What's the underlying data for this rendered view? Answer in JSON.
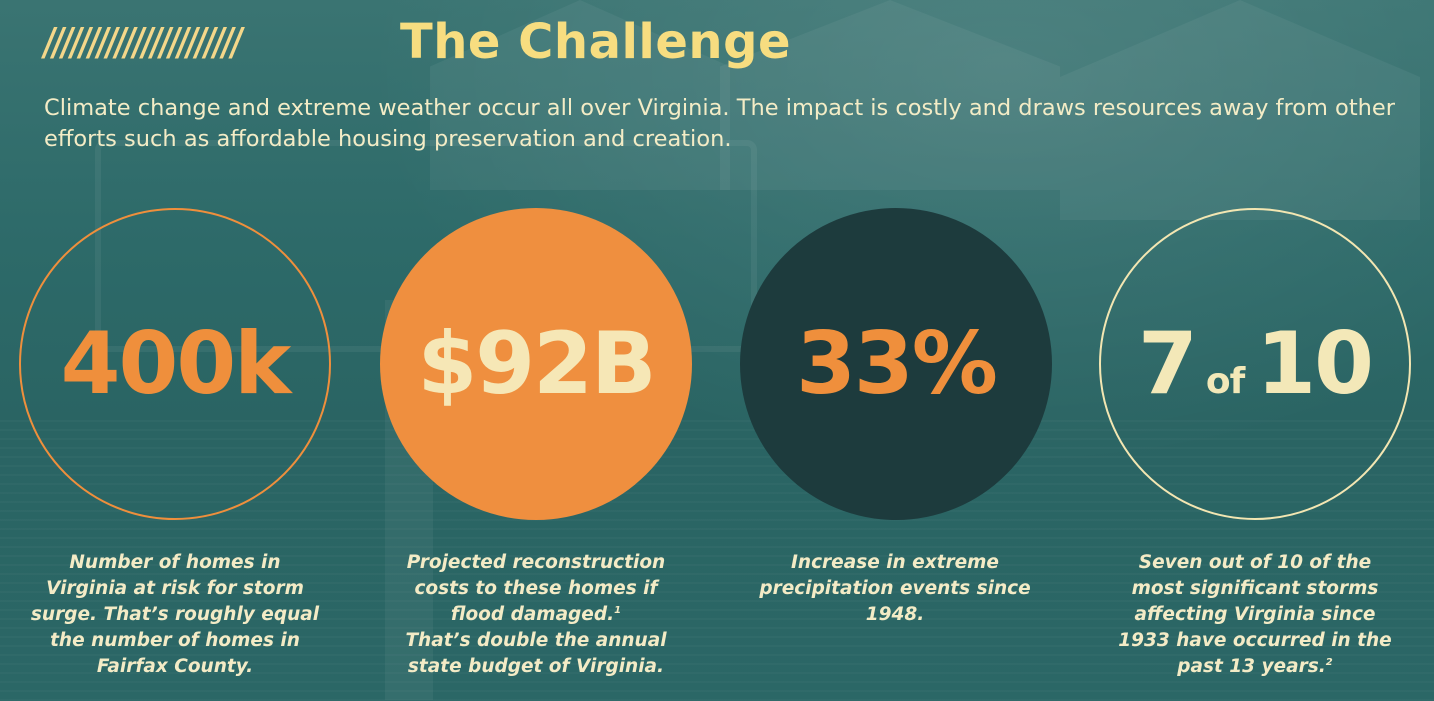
{
  "header": {
    "slashes": "//////////////////////",
    "title": "The Challenge",
    "intro": "Climate change and extreme weather occur all over Virginia. The impact is costly and draws resources away from other efforts such as affordable housing preservation and creation."
  },
  "colors": {
    "accent_orange": "#ef8f3c",
    "accent_yellow": "#f7dd80",
    "cream": "#f3ebc6",
    "dark_teal": "#1d3b3d",
    "background_teal": "#2b6b6b"
  },
  "stats": [
    {
      "value": "400k",
      "caption_lines": [
        "Number of homes in",
        "Virginia at risk for storm",
        "surge. That’s roughly equal",
        "the number of homes in",
        "Fairfax County."
      ]
    },
    {
      "value": "$92B",
      "caption_lines": [
        "Projected reconstruction",
        "costs to these homes if",
        "flood damaged.",
        "That’s double the annual",
        "state budget of Virginia."
      ],
      "footnote": "1"
    },
    {
      "value": "33%",
      "caption_lines": [
        "Increase in extreme",
        "precipitation events since",
        "1948."
      ]
    },
    {
      "value_part1": "7",
      "value_of": "of",
      "value_part2": "10",
      "caption_lines": [
        "Seven out of 10 of the",
        "most significant storms",
        "affecting Virginia since",
        "1933 have occurred in the",
        "past 13 years."
      ],
      "footnote": "2"
    }
  ]
}
